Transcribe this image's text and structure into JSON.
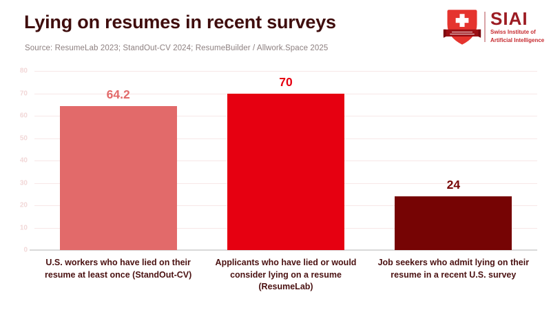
{
  "header": {
    "title": "Lying on resumes in recent surveys",
    "source": "Source: ResumeLab 2023; StandOut-CV 2024; ResumeBuilder / Allwork.Space 2025"
  },
  "logo": {
    "acronym": "SIAI",
    "name_line1": "Swiss Institute of",
    "name_line2": "Artificial Intelligence"
  },
  "colors": {
    "title_text": "#3f0d0d",
    "source_text": "#8d8080",
    "category_text": "#4a1111",
    "ytick_text": "#f2d8d8",
    "gridline": "#f7e7e7",
    "axis_line": "#d9d9d9",
    "bar_salmon": "#e26a6a",
    "bar_red": "#e60011",
    "bar_maroon": "#760404",
    "logo_bright_red": "#e5342e",
    "logo_dark_red": "#9c1c23"
  },
  "chart_data": {
    "type": "bar",
    "title": "Lying on resumes in recent surveys",
    "categories": [
      "U.S. workers who have lied on their resume at least once (StandOut-CV)",
      "Applicants who have lied or would consider lying on a resume (ResumeLab)",
      "Job seekers who admit lying on their resume in a recent U.S. survey"
    ],
    "values": [
      64.2,
      70,
      24
    ],
    "value_labels": [
      "64.2",
      "70",
      "24"
    ],
    "bar_colors": [
      "#e26a6a",
      "#e60011",
      "#760404"
    ],
    "xlabel": "",
    "ylabel": "",
    "ylim": [
      0,
      80
    ],
    "ytick_step": 10,
    "yticks": [
      0,
      10,
      20,
      30,
      40,
      50,
      60,
      70,
      80
    ],
    "grid": true,
    "legend": false
  }
}
